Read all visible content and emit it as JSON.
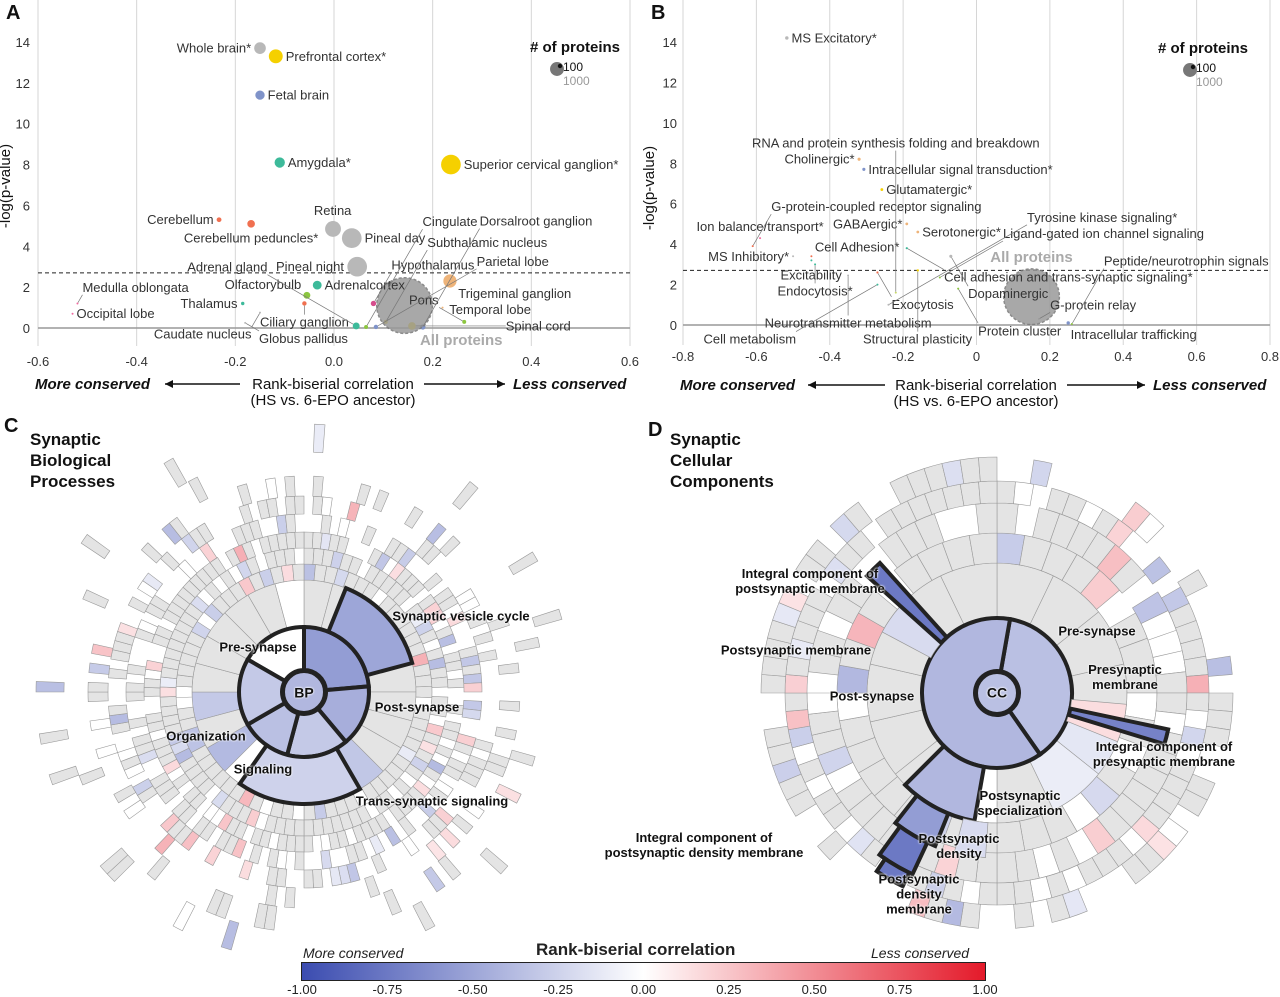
{
  "panel_labels": {
    "a": "A",
    "b": "B",
    "c": "C",
    "d": "D"
  },
  "chart_data": [
    {
      "type": "scatter",
      "id": "A",
      "xlabel": "Rank-biserial correlation",
      "xlabel_sub": "(HS vs. 6-EPO ancestor)",
      "ylabel": "-log(p-value)",
      "xlim": [
        -0.6,
        0.6
      ],
      "ylim": [
        0,
        14
      ],
      "xticks": [
        "-0.6",
        "-0.4",
        "-0.2",
        "0.0",
        "0.2",
        "0.4",
        "0.6"
      ],
      "yticks": [
        "0",
        "2",
        "4",
        "6",
        "8",
        "10",
        "12",
        "14"
      ],
      "threshold": 2.7,
      "left_caption": "More conserved",
      "right_caption": "Less conserved",
      "legend": {
        "title": "# of proteins",
        "small": "100",
        "large": "1000",
        "small_n": 100,
        "large_n": 1000
      },
      "points": [
        {
          "label": "Whole brain*",
          "x": -0.15,
          "y": 13.7,
          "n": 700,
          "color": "#b8b8b8",
          "side": "left"
        },
        {
          "label": "Prefrontal cortex*",
          "x": -0.118,
          "y": 13.3,
          "n": 1000,
          "color": "#f5d000",
          "side": "right"
        },
        {
          "label": "Fetal brain",
          "x": -0.15,
          "y": 11.4,
          "n": 450,
          "color": "#7f93c9",
          "side": "right"
        },
        {
          "label": "Amygdala*",
          "x": -0.11,
          "y": 8.1,
          "n": 550,
          "color": "#3dba9a",
          "side": "right"
        },
        {
          "label": "Superior cervical ganglion*",
          "x": 0.237,
          "y": 8.0,
          "n": 2000,
          "color": "#f5d000",
          "side": "right"
        },
        {
          "label": "Cerebellum",
          "x": -0.233,
          "y": 5.3,
          "n": 120,
          "color": "#f07050",
          "side": "left"
        },
        {
          "label": "Cerebellum peduncles*",
          "x": -0.168,
          "y": 5.1,
          "n": 300,
          "color": "#f07050",
          "side": "right"
        },
        {
          "label": "Retina",
          "x": -0.002,
          "y": 4.85,
          "n": 1300,
          "color": "#b8b8b8",
          "side": "left"
        },
        {
          "label": "Pineal day",
          "x": 0.036,
          "y": 4.4,
          "n": 2000,
          "color": "#b8b8b8",
          "side": "right"
        },
        {
          "label": "Pineal night",
          "x": 0.047,
          "y": 3.0,
          "n": 2000,
          "color": "#b8b8b8",
          "side": "left"
        },
        {
          "label": "Adrenalcortex",
          "x": -0.034,
          "y": 2.1,
          "n": 400,
          "color": "#3dba9a",
          "side": "left"
        },
        {
          "label": "Olfactorybulb",
          "x": -0.055,
          "y": 1.6,
          "n": 250,
          "color": "#8cc63f",
          "side": "left"
        },
        {
          "label": "Ciliary ganglion",
          "x": -0.06,
          "y": 1.2,
          "n": 100,
          "color": "#f07050",
          "side": "right"
        },
        {
          "label": "Thalamus",
          "x": -0.185,
          "y": 1.2,
          "n": 60,
          "color": "#3dba9a",
          "side": "left"
        },
        {
          "label": "Caudate nucleus",
          "x": -0.15,
          "y": 0.75,
          "n": 10,
          "color": "#b8b8b8",
          "side": "right"
        },
        {
          "label": "Globus pallidus",
          "x": -0.18,
          "y": 0.25,
          "n": 10,
          "color": "#b8b8b8",
          "side": "right"
        },
        {
          "label": "Medulla oblongata",
          "x": -0.52,
          "y": 1.2,
          "n": 15,
          "color": "#f06ba0",
          "side": "right"
        },
        {
          "label": "Occipital lobe",
          "x": -0.53,
          "y": 0.7,
          "n": 15,
          "color": "#f06ba0",
          "side": "right"
        },
        {
          "label": "Hypothalamus",
          "x": 0.08,
          "y": 1.2,
          "n": 150,
          "color": "#d64d8d",
          "side": "right"
        },
        {
          "label": "Trigeminal ganglion",
          "x": 0.235,
          "y": 2.3,
          "n": 900,
          "color": "#eeb47a",
          "side": "right"
        },
        {
          "label": "Temporal lobe",
          "x": 0.22,
          "y": 1.0,
          "n": 15,
          "color": "#eeb47a",
          "side": "right"
        },
        {
          "label": "Subthalamic nucleus",
          "x": 0.105,
          "y": 0.3,
          "n": 80,
          "color": "#f5d000",
          "side": "left"
        },
        {
          "label": "Pons",
          "x": 0.264,
          "y": 0.3,
          "n": 80,
          "color": "#8cc63f",
          "side": "right"
        },
        {
          "label": "Adrenal gland",
          "x": 0.045,
          "y": 0.1,
          "n": 250,
          "color": "#3dba9a",
          "side": "left"
        },
        {
          "label": "Cingulate",
          "x": 0.065,
          "y": 0.05,
          "n": 80,
          "color": "#8cc63f",
          "side": "right"
        },
        {
          "label": "Parietal lobe",
          "x": 0.085,
          "y": 0.05,
          "n": 100,
          "color": "#7f93c9",
          "side": "below"
        },
        {
          "label": "Spinal cord",
          "x": 0.158,
          "y": 0.1,
          "n": 300,
          "color": "#f5d000",
          "side": "below"
        },
        {
          "label": "Dorsalroot ganglion",
          "x": 0.18,
          "y": 0.05,
          "n": 150,
          "color": "#7f93c9",
          "side": "right"
        },
        {
          "label": "All proteins",
          "x": 0.143,
          "y": 1.1,
          "n": 16000,
          "color": "#999999",
          "side": "above",
          "all": true
        }
      ]
    },
    {
      "type": "scatter",
      "id": "B",
      "xlabel": "Rank-biserial correlation",
      "xlabel_sub": "(HS vs. 6-EPO ancestor)",
      "ylabel": "-log(p-value)",
      "xlim": [
        -0.8,
        0.8
      ],
      "ylim": [
        0,
        14
      ],
      "xticks": [
        "-0.8",
        "-0.6",
        "-0.4",
        "-0.2",
        "0",
        "0.2",
        "0.4",
        "0.6",
        "0.8"
      ],
      "yticks": [
        "0",
        "2",
        "4",
        "6",
        "8",
        "10",
        "12",
        "14"
      ],
      "threshold": 2.7,
      "left_caption": "More conserved",
      "right_caption": "Less conserved",
      "legend": {
        "title": "# of proteins",
        "small": "100",
        "large": "1000",
        "small_n": 100,
        "large_n": 1000
      },
      "points": [
        {
          "label": "MS Excitatory*",
          "x": -0.517,
          "y": 14.2,
          "n": 60,
          "color": "#b8b8b8",
          "side": "right"
        },
        {
          "label": "Cholinergic*",
          "x": -0.32,
          "y": 8.2,
          "n": 50,
          "color": "#eeb47a",
          "side": "left"
        },
        {
          "label": "Intracellular signal transduction*",
          "x": -0.307,
          "y": 7.7,
          "n": 50,
          "color": "#7f93c9",
          "side": "right"
        },
        {
          "label": "Glutamatergic*",
          "x": -0.258,
          "y": 6.7,
          "n": 40,
          "color": "#f5d000",
          "side": "right"
        },
        {
          "label": "GABAergic*",
          "x": -0.19,
          "y": 5.0,
          "n": 40,
          "color": "#eeb47a",
          "side": "left"
        },
        {
          "label": "Serotonergic*",
          "x": -0.16,
          "y": 4.6,
          "n": 40,
          "color": "#eeb47a",
          "side": "right"
        },
        {
          "label": "Ion balance/transport*",
          "x": -0.59,
          "y": 4.3,
          "n": 8,
          "color": "#f06ba0",
          "side": "right"
        },
        {
          "label": "G-protein-coupled receptor signaling",
          "x": -0.61,
          "y": 3.9,
          "n": 15,
          "color": "#f07050",
          "side": "right"
        },
        {
          "label": "MS Inhibitory*",
          "x": -0.5,
          "y": 3.4,
          "n": 12,
          "color": "#b8b8b8",
          "side": "right"
        },
        {
          "label": "Cell Adhesion*",
          "x": -0.45,
          "y": 3.4,
          "n": 15,
          "color": "#f07050",
          "side": "right"
        },
        {
          "label": "Excitability",
          "x": -0.45,
          "y": 3.2,
          "n": 8,
          "color": "#3dba9a",
          "side": "right"
        },
        {
          "label": "Endocytosis*",
          "x": -0.44,
          "y": 3.0,
          "n": 15,
          "color": "#3dba9a",
          "side": "left"
        },
        {
          "label": "Exocytosis",
          "x": -0.27,
          "y": 2.6,
          "n": 25,
          "color": "#f07050",
          "side": "left"
        },
        {
          "label": "Neurotransmitter metabolism",
          "x": -0.35,
          "y": 2.45,
          "n": 8,
          "color": "#b8b8b8",
          "side": "left"
        },
        {
          "label": "Cell adhesion and trans-synaptic signaling*",
          "x": -0.19,
          "y": 3.8,
          "n": 25,
          "color": "#3dba9a",
          "side": "right"
        },
        {
          "label": "Dopaminergic",
          "x": -0.07,
          "y": 3.4,
          "n": 50,
          "color": "#b8b8b8",
          "side": "right"
        },
        {
          "label": "Structural plasticity",
          "x": -0.16,
          "y": 2.7,
          "n": 30,
          "color": "#f5d000",
          "side": "right"
        },
        {
          "label": "Ligand-gated ion channel signaling",
          "x": -0.1,
          "y": 2.35,
          "n": 8,
          "color": "#8cc63f",
          "side": "right"
        },
        {
          "label": "Cell metabolism",
          "x": -0.27,
          "y": 2.0,
          "n": 10,
          "color": "#3dba9a",
          "side": "left"
        },
        {
          "label": "Protein cluster",
          "x": -0.05,
          "y": 1.8,
          "n": 20,
          "color": "#8cc63f",
          "side": "right"
        },
        {
          "label": "RNA and protein synthesis folding and breakdown",
          "x": -0.22,
          "y": 1.6,
          "n": 20,
          "color": "#c8d86a",
          "side": "right"
        },
        {
          "label": "Tyrosine kinase signaling*",
          "x": -0.24,
          "y": 1.0,
          "n": 5,
          "color": "#b8b8b8",
          "side": "left"
        },
        {
          "label": "G-protein relay",
          "x": 0.17,
          "y": 0.3,
          "n": 5,
          "color": "#b8b8b8",
          "side": "left"
        },
        {
          "label": "Intracellular trafficking",
          "x": 0.25,
          "y": 0.1,
          "n": 60,
          "color": "#7f93c9",
          "side": "right"
        },
        {
          "label": "Peptide/neurotrophin signals",
          "x": 0.26,
          "y": 0.05,
          "n": 15,
          "color": "#8cc63f",
          "side": "below"
        },
        {
          "label": "All proteins",
          "x": 0.15,
          "y": 1.4,
          "n": 16000,
          "color": "#999999",
          "side": "above",
          "all": true
        }
      ]
    },
    {
      "type": "sunburst",
      "id": "C",
      "title": "Synaptic Biological Processes",
      "center": "BP",
      "segments": [
        {
          "label": "Synaptic vesicle cycle",
          "correlation": -0.5
        },
        {
          "label": "Pre-synapse",
          "correlation": 0.0
        },
        {
          "label": "Post-synapse",
          "correlation": -0.45
        },
        {
          "label": "Organization",
          "correlation": -0.3
        },
        {
          "label": "Signaling",
          "correlation": -0.3
        },
        {
          "label": "Trans-synaptic signaling",
          "correlation": -0.25
        }
      ]
    },
    {
      "type": "sunburst",
      "id": "D",
      "title": "Synaptic Cellular Components",
      "center": "CC",
      "segments": [
        {
          "label": "Integral component of postsynaptic membrane",
          "correlation": -0.75
        },
        {
          "label": "Postsynaptic membrane",
          "correlation": -0.2
        },
        {
          "label": "Post-synapse",
          "correlation": -0.4
        },
        {
          "label": "Pre-synapse",
          "correlation": -0.35
        },
        {
          "label": "Presynaptic membrane",
          "correlation": 0.15
        },
        {
          "label": "Integral component of presynaptic membrane",
          "correlation": -0.7
        },
        {
          "label": "Postsynaptic specialization",
          "correlation": -0.4
        },
        {
          "label": "Postsynaptic density",
          "correlation": -0.55
        },
        {
          "label": "Postsynaptic density membrane",
          "correlation": -0.2
        },
        {
          "label": "Integral component of postsynaptic density membrane",
          "correlation": -0.75
        }
      ]
    }
  ],
  "colorbar": {
    "title": "Rank-biserial correlation",
    "left_caption": "More conserved",
    "right_caption": "Less conserved",
    "ticks": [
      "-1.00",
      "-0.75",
      "-0.50",
      "-0.25",
      "0.00",
      "0.25",
      "0.50",
      "0.75",
      "1.00"
    ],
    "range": [
      -1,
      1
    ],
    "colors": {
      "low": "#3b4cb0",
      "mid": "#ffffff",
      "high": "#e41a2a"
    }
  }
}
